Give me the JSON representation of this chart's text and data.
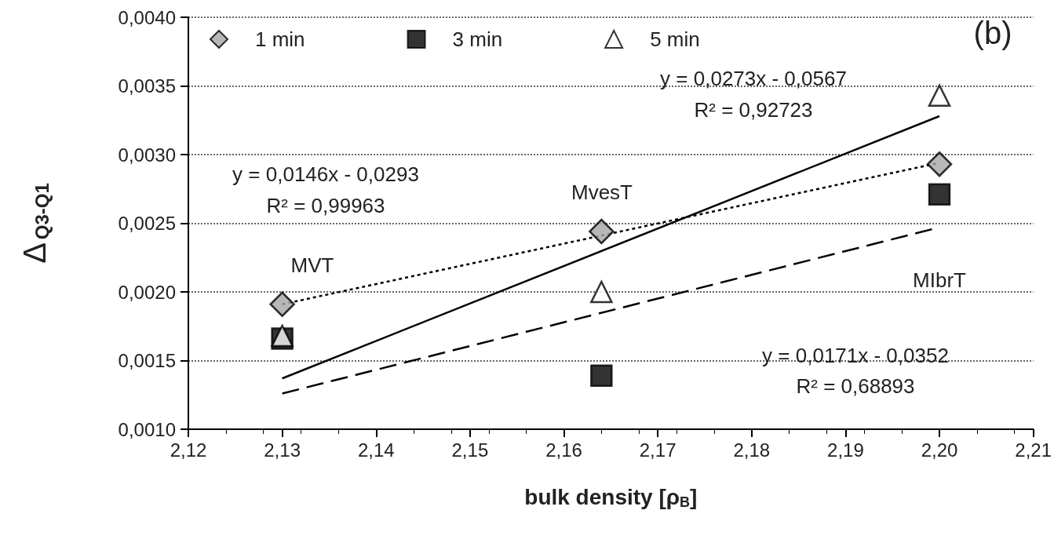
{
  "chart_data": {
    "type": "scatter",
    "xlabel": "bulk density [ρ$_{B}$]",
    "ylabel": "Δ$_{Q3-Q1}$",
    "xlim": [
      2.12,
      2.21
    ],
    "xticks": [
      {
        "value": 2.12,
        "label": "2,12"
      },
      {
        "value": 2.13,
        "label": "2,13"
      },
      {
        "value": 2.14,
        "label": "2,14"
      },
      {
        "value": 2.15,
        "label": "2,15"
      },
      {
        "value": 2.16,
        "label": "2,16"
      },
      {
        "value": 2.17,
        "label": "2,17"
      },
      {
        "value": 2.18,
        "label": "2,18"
      },
      {
        "value": 2.19,
        "label": "2,19"
      },
      {
        "value": 2.2,
        "label": "2,20"
      },
      {
        "value": 2.21,
        "label": "2,21"
      }
    ],
    "ylim": [
      0.001,
      0.004
    ],
    "yticks": [
      {
        "value": 0.001,
        "label": "0,0010"
      },
      {
        "value": 0.0015,
        "label": "0,0015"
      },
      {
        "value": 0.002,
        "label": "0,0020"
      },
      {
        "value": 0.0025,
        "label": "0,0025"
      },
      {
        "value": 0.003,
        "label": "0,0030"
      },
      {
        "value": 0.0035,
        "label": "0,0035"
      },
      {
        "value": 0.004,
        "label": "0,0040"
      }
    ],
    "grid": "y",
    "legend": "top left",
    "series": [
      {
        "name": "1 min",
        "marker": "diamond",
        "color": "#a6a6a6",
        "x": [
          2.13,
          2.164,
          2.2
        ],
        "values": [
          0.00191,
          0.00244,
          0.00293
        ]
      },
      {
        "name": "3 min",
        "marker": "square",
        "color": "#000000",
        "x": [
          2.13,
          2.164,
          2.2
        ],
        "values": [
          0.00166,
          0.00139,
          0.00271
        ]
      },
      {
        "name": "5 min",
        "marker": "triangle",
        "color": "#ffffff",
        "x": [
          2.13,
          2.164,
          2.2
        ],
        "values": [
          0.00168,
          0.002,
          0.00343
        ]
      },
      {
        "type": "line",
        "marker": "none",
        "line_style": "dotted",
        "color": "#000000",
        "x": [
          2.13,
          2.2
        ],
        "values": [
          0.00191,
          0.00294
        ]
      },
      {
        "type": "line",
        "marker": "none",
        "line_style": "dashed",
        "color": "#000000",
        "x": [
          2.13,
          2.2
        ],
        "values": [
          0.00126,
          0.00247
        ]
      },
      {
        "type": "line",
        "marker": "none",
        "line_style": "solid",
        "color": "#000000",
        "x": [
          2.13,
          2.2
        ],
        "values": [
          0.00137,
          0.00328
        ]
      }
    ],
    "annotations": [
      "MVT",
      "MvesT",
      "MIbrT",
      "y = 0,0273x - 0,0567",
      "R² = 0,92723",
      "y = 0,0146x - 0,0293",
      "R² = 0,99963",
      "y = 0,0171x - 0,0352",
      "R² = 0,68893",
      "(b)"
    ]
  }
}
